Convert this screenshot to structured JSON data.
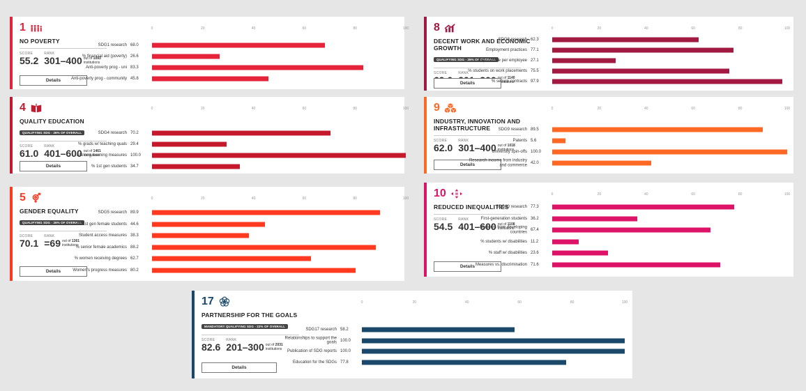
{
  "axis_ticks": [
    "0",
    "20",
    "40",
    "60",
    "80",
    "100"
  ],
  "details_label": "Details",
  "score_label": "SCORE",
  "rank_label": "RANK",
  "cards": [
    {
      "id": "sdg1",
      "number": "1",
      "icon": "people-icon",
      "color": "#e5243b",
      "title": "NO POVERTY",
      "qualifying": "",
      "score": "55.2",
      "rank": "301–400",
      "out_of_prefix": "out of",
      "out_of": "1093",
      "out_of_suffix": "institutions",
      "metrics": [
        {
          "label": "SDG1 research",
          "value": "68.0",
          "pct": 68.0
        },
        {
          "label": "% financial aid (poverty)",
          "value": "26.6",
          "pct": 26.6
        },
        {
          "label": "Anti-poverty prog - uni",
          "value": "83.3",
          "pct": 83.3
        },
        {
          "label": "Anti-poverty prog - community",
          "value": "45.8",
          "pct": 45.8
        }
      ]
    },
    {
      "id": "sdg8",
      "number": "8",
      "icon": "growth-chart-icon",
      "color": "#a21942",
      "title": "DECENT WORK AND ECONOMIC GROWTH",
      "qualifying": "QUALIFYING SDG - 26% OF OVERALL",
      "score": "69.0",
      "rank": "201–300",
      "out_of_prefix": "out of",
      "out_of": "1140",
      "out_of_suffix": "institutions",
      "metrics": [
        {
          "label": "SDG8 research",
          "value": "62.3",
          "pct": 62.3
        },
        {
          "label": "Employment practices",
          "value": "77.1",
          "pct": 77.1
        },
        {
          "label": "Expenditure per employee",
          "value": "27.1",
          "pct": 27.1
        },
        {
          "label": "% students on work placements",
          "value": "75.5",
          "pct": 75.5
        },
        {
          "label": "% secure contracts",
          "value": "97.9",
          "pct": 97.9
        }
      ]
    },
    {
      "id": "sdg4",
      "number": "4",
      "icon": "book-icon",
      "color": "#c5192d",
      "title": "QUALITY EDUCATION",
      "qualifying": "QUALIFYING SDG - 26% OF OVERALL",
      "score": "61.0",
      "rank": "401–600",
      "out_of_prefix": "out of",
      "out_of": "1461",
      "out_of_suffix": "institutions",
      "metrics": [
        {
          "label": "SDG4 research",
          "value": "70.2",
          "pct": 70.2
        },
        {
          "label": "% grads w/ teaching quals",
          "value": "29.4",
          "pct": 29.4
        },
        {
          "label": "Lifelong learning measures",
          "value": "100.0",
          "pct": 100.0
        },
        {
          "label": "% 1st gen students",
          "value": "34.7",
          "pct": 34.7
        }
      ]
    },
    {
      "id": "sdg9",
      "number": "9",
      "icon": "cubes-icon",
      "color": "#fd6925",
      "title": "INDUSTRY, INNOVATION AND INFRASTRUCTURE",
      "qualifying": "",
      "score": "62.0",
      "rank": "301–400",
      "out_of_prefix": "out of",
      "out_of": "1018",
      "out_of_suffix": "institutions",
      "metrics": [
        {
          "label": "SDG9 research",
          "value": "89.5",
          "pct": 89.5
        },
        {
          "label": "Patents",
          "value": "5.6",
          "pct": 5.6
        },
        {
          "label": "University spin-offs",
          "value": "100.0",
          "pct": 100.0
        },
        {
          "label": "Research income from industry and commerce",
          "value": "42.0",
          "pct": 42.0
        }
      ]
    },
    {
      "id": "sdg5",
      "number": "5",
      "icon": "gender-icon",
      "color": "#ff3a21",
      "title": "GENDER EQUALITY",
      "qualifying": "QUALIFYING SDG - 26% OF OVERALL",
      "score": "70.1",
      "rank": "=69",
      "out_of_prefix": "out of",
      "out_of": "1361",
      "out_of_suffix": "institutions",
      "metrics": [
        {
          "label": "SDG5 research",
          "value": "89.9",
          "pct": 89.9
        },
        {
          "label": "% 1st gen female students",
          "value": "44.6",
          "pct": 44.6
        },
        {
          "label": "Student access measures",
          "value": "38.3",
          "pct": 38.3
        },
        {
          "label": "% senior female academics",
          "value": "88.2",
          "pct": 88.2
        },
        {
          "label": "% women receiving degrees",
          "value": "62.7",
          "pct": 62.7
        },
        {
          "label": "Women's progress measures",
          "value": "80.2",
          "pct": 80.2
        }
      ]
    },
    {
      "id": "sdg10",
      "number": "10",
      "icon": "arrows-icon",
      "color": "#dd1367",
      "title": "REDUCED INEQUALITIES",
      "qualifying": "",
      "score": "54.5",
      "rank": "401–600",
      "out_of_prefix": "out of",
      "out_of": "1108",
      "out_of_suffix": "institutions",
      "metrics": [
        {
          "label": "SDG10 research",
          "value": "77.3",
          "pct": 77.3
        },
        {
          "label": "First-generation students",
          "value": "36.2",
          "pct": 36.2
        },
        {
          "label": "Students from developing countries",
          "value": "67.4",
          "pct": 67.4
        },
        {
          "label": "% students w/ disabilities",
          "value": "11.2",
          "pct": 11.2
        },
        {
          "label": "% staff w/ disabilities",
          "value": "23.6",
          "pct": 23.6
        },
        {
          "label": "Measures vs. discrimination",
          "value": "71.6",
          "pct": 71.6
        }
      ]
    },
    {
      "id": "sdg17",
      "number": "17",
      "icon": "flower-icon",
      "color": "#19486a",
      "title": "PARTNERSHIP FOR THE GOALS",
      "qualifying": "MANDATORY QUALIFYING SDG - 22% OF OVERALL",
      "score": "82.6",
      "rank": "201–300",
      "out_of_prefix": "out of",
      "out_of": "2031",
      "out_of_suffix": "institutions",
      "metrics": [
        {
          "label": "SDG17 research",
          "value": "58.2",
          "pct": 58.2
        },
        {
          "label": "Relationships to support the goals",
          "value": "100.0",
          "pct": 100.0
        },
        {
          "label": "Publication of SDG reports",
          "value": "100.0",
          "pct": 100.0
        },
        {
          "label": "Education for the SDGs",
          "value": "77.8",
          "pct": 77.8
        }
      ]
    }
  ]
}
